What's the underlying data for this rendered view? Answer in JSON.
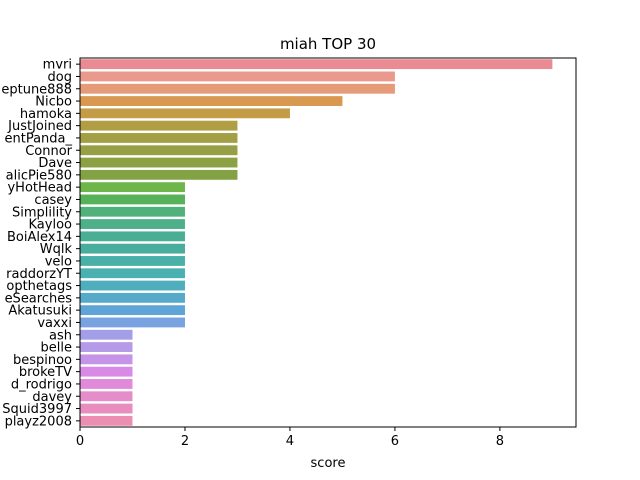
{
  "chart_data": {
    "type": "bar",
    "orientation": "horizontal",
    "title": "miah TOP 30",
    "xlabel": "score",
    "ylabel": "",
    "xlim": [
      0,
      9.45
    ],
    "xticks": [
      0,
      2,
      4,
      6,
      8
    ],
    "grid": false,
    "categories": [
      "mvri",
      "dog",
      "eptune888",
      "Nicbo",
      "hamoka",
      "JustJoined",
      "entPanda_",
      "Connor",
      "Dave",
      "alicPie580",
      "yHotHead",
      "casey",
      "Simplility",
      "Kayloo",
      "BoiAlex14",
      "Wqlk",
      "velo",
      "raddorzYT",
      "opthetags",
      "eSearches",
      "Akatusuki",
      "vaxxi",
      "ash",
      "belle",
      "bespinoo",
      "brokeTV",
      "d_rodrigo",
      "davey",
      "Squid3997",
      "playz2008"
    ],
    "values": [
      9,
      6,
      6,
      5,
      4,
      3,
      3,
      3,
      3,
      3,
      2,
      2,
      2,
      2,
      2,
      2,
      2,
      2,
      2,
      2,
      2,
      2,
      1,
      1,
      1,
      1,
      1,
      1,
      1,
      1
    ],
    "colors": [
      "#ea8a93",
      "#e99a8d",
      "#e59a78",
      "#d8984f",
      "#c59c46",
      "#b09d44",
      "#a39f45",
      "#979f45",
      "#8ca144",
      "#83a244",
      "#6eb64a",
      "#56b258",
      "#50b27a",
      "#4db08a",
      "#4aae94",
      "#48ad9c",
      "#48b0a8",
      "#4bb0b2",
      "#4eaebe",
      "#54aac8",
      "#5fa4d6",
      "#78a2e0",
      "#a39ee8",
      "#b59ae8",
      "#c594e8",
      "#d88ae6",
      "#e08ad9",
      "#e58ccb",
      "#e98dbf",
      "#eb8eb1"
    ]
  }
}
